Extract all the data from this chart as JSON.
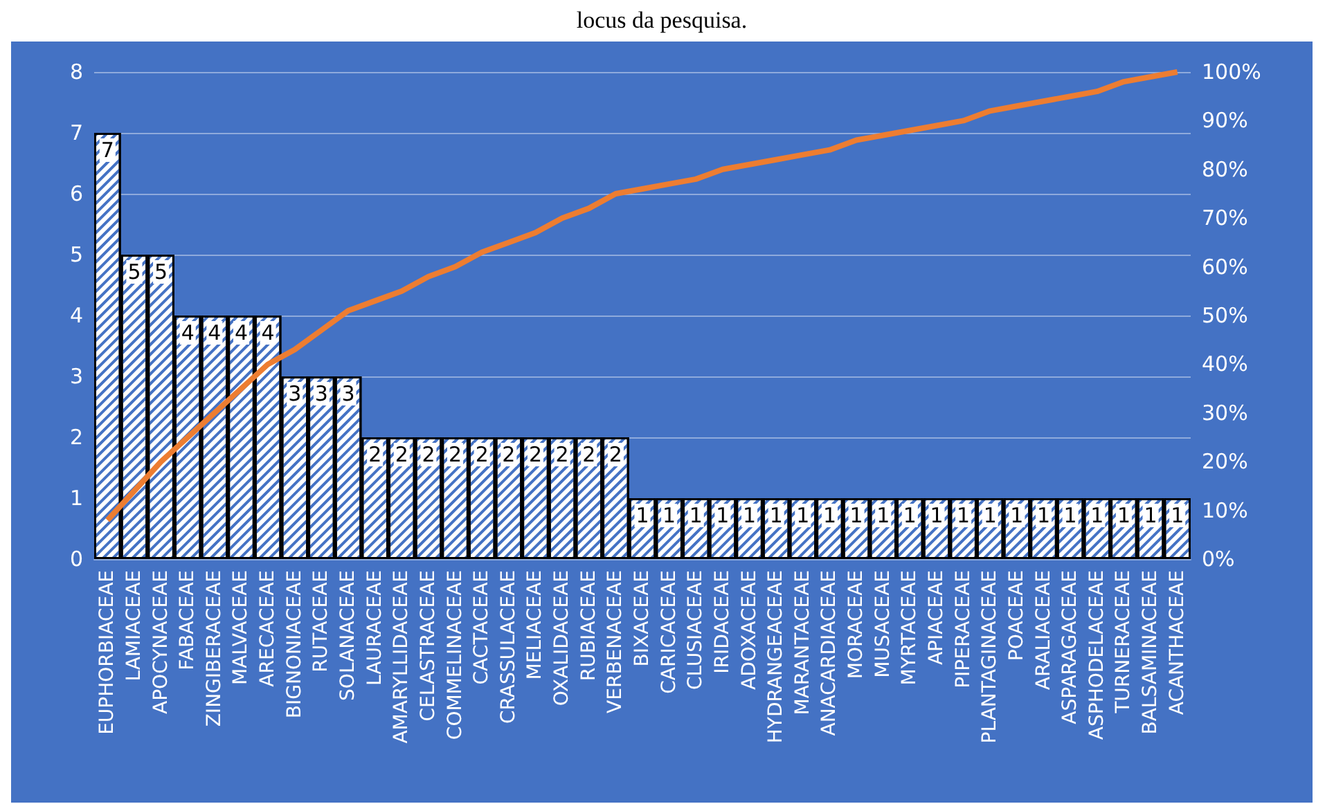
{
  "chart_data": {
    "type": "bar",
    "title": "locus da pesquisa.",
    "categories": [
      "EUPHORBIACEAE",
      "LAMIACEAE",
      "APOCYNACEAE",
      "FABACEAE",
      "ZINGIBERACEAE",
      "MALVACEAE",
      "ARECACEAE",
      "BIGNONIACEAE",
      "RUTACEAE",
      "SOLANACEAE",
      "LAURACEAE",
      "AMARYLLIDACEAE",
      "CELASTRACEAE",
      "COMMELINACEAE",
      "CACTACEAE",
      "CRASSULACEAE",
      "MELIACEAE",
      "OXALIDACEAE",
      "RUBIACEAE",
      "VERBENACEAE",
      "BIXACEAE",
      "CARICACEAE",
      "CLUSIACEAE",
      "IRIDACEAE",
      "ADOXACEAE",
      "HYDRANGEACEAE",
      "MARANTACEAE",
      "ANACARDIACEAE",
      "MORACEAE",
      "MUSACEAE",
      "MYRTACEAE",
      "APIACEAE",
      "PIPERACEAE",
      "PLANTAGINACEAE",
      "POACEAE",
      "ARALIACEAE",
      "ASPARAGACEAE",
      "ASPHODELACEAE",
      "TURNERACEAE",
      "BALSAMINACEAE",
      "ACANTHACEAE"
    ],
    "series": [
      {
        "color": "#ffffff",
        "values": [
          7,
          5,
          5,
          4,
          4,
          4,
          4,
          3,
          3,
          3,
          2,
          2,
          2,
          2,
          2,
          2,
          2,
          2,
          2,
          2,
          1,
          1,
          1,
          1,
          1,
          1,
          1,
          1,
          1,
          1,
          1,
          1,
          1,
          1,
          1,
          1,
          1,
          1,
          1,
          1,
          1
        ],
        "value_labels": [
          "7",
          "5",
          "5",
          "4",
          "4",
          "4",
          "4",
          "3",
          "3",
          "3",
          "2",
          "2",
          "2",
          "2",
          "2",
          "2",
          "2",
          "2",
          "2",
          "2",
          "1",
          "1",
          "1",
          "1",
          "1",
          "1",
          "1",
          "1",
          "1",
          "1",
          "1",
          "1",
          "1",
          "1",
          "1",
          "1",
          "1",
          "1",
          "1",
          "1",
          "1"
        ]
      },
      {
        "type": "line",
        "axis": "y2",
        "color": "#ed7d31",
        "values": [
          8,
          14,
          20,
          25,
          30,
          35,
          40,
          43,
          47,
          51,
          53,
          55,
          58,
          60,
          63,
          65,
          67,
          70,
          72,
          75,
          76,
          77,
          78,
          80,
          81,
          82,
          83,
          84,
          86,
          87,
          88,
          89,
          90,
          92,
          93,
          94,
          95,
          96,
          98,
          99,
          100
        ]
      }
    ],
    "ylim": [
      0,
      8
    ],
    "yticks": [
      0,
      1,
      2,
      3,
      4,
      5,
      6,
      7,
      8
    ],
    "y2lim": [
      0,
      100
    ],
    "y2ticks": [
      {
        "value": 0,
        "label": "0%"
      },
      {
        "value": 10,
        "label": "10%"
      },
      {
        "value": 20,
        "label": "20%"
      },
      {
        "value": 30,
        "label": "30%"
      },
      {
        "value": 40,
        "label": "40%"
      },
      {
        "value": 50,
        "label": "50%"
      },
      {
        "value": 60,
        "label": "60%"
      },
      {
        "value": 70,
        "label": "70%"
      },
      {
        "value": 80,
        "label": "80%"
      },
      {
        "value": 90,
        "label": "90%"
      },
      {
        "value": 100,
        "label": "100%"
      }
    ],
    "grid": "y",
    "marker": "none",
    "line_style": "solid"
  }
}
